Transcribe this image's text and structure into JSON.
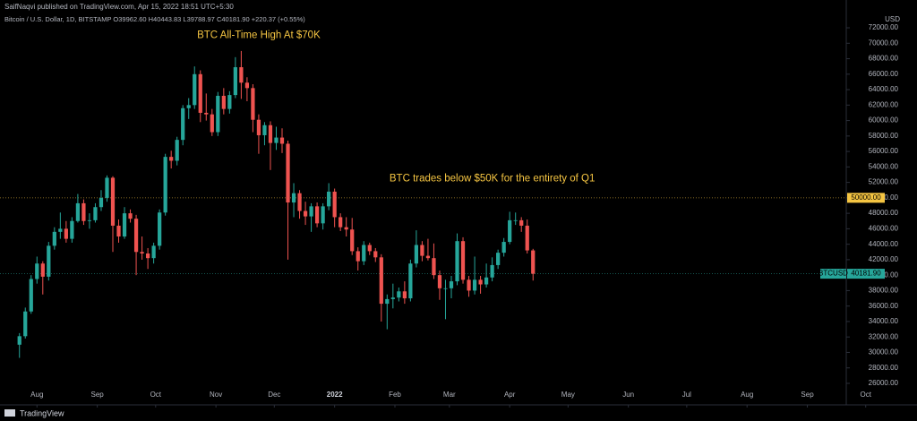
{
  "chart_data": {
    "type": "candlestick",
    "header": "SaifNaqvi published on TradingView.com, Apr 15, 2022 18:51 UTC+5:30",
    "symbol_line": "Bitcoin / U.S. Dollar, 1D, BITSTAMP  O39962.60  H40443.83  L39788.97  C40181.90  +220.37 (+0.55%)",
    "currency": "USD",
    "footer": "TradingView",
    "annotations": [
      {
        "text": "BTC All-Time High At $70K",
        "x": 114,
        "y": 71000
      },
      {
        "text": "BTC trades below $50K for the entirety of Q1",
        "x": 234,
        "y": 52500
      }
    ],
    "price_lines": [
      {
        "value": 50000,
        "label": "50000.00",
        "color": "#f5c542"
      },
      {
        "name": "BTCUSD",
        "value": 40181.9,
        "label": "40181.90",
        "color": "#26a69a"
      }
    ],
    "up_color": "#26a69a",
    "down_color": "#ef5350",
    "annotation_color": "#f5c542",
    "xlim": [
      -19,
      416
    ],
    "ylim": [
      25000,
      73000
    ],
    "xticks": [
      {
        "value": 0,
        "label": "Aug"
      },
      {
        "value": 31,
        "label": "Sep"
      },
      {
        "value": 61,
        "label": "Oct"
      },
      {
        "value": 92,
        "label": "Nov"
      },
      {
        "value": 122,
        "label": "Dec"
      },
      {
        "value": 153,
        "label": "2022"
      },
      {
        "value": 184,
        "label": "Feb"
      },
      {
        "value": 212,
        "label": "Mar"
      },
      {
        "value": 243,
        "label": "Apr"
      },
      {
        "value": 273,
        "label": "May"
      },
      {
        "value": 304,
        "label": "Jun"
      },
      {
        "value": 334,
        "label": "Jul"
      },
      {
        "value": 365,
        "label": "Aug"
      },
      {
        "value": 396,
        "label": "Sep"
      },
      {
        "value": 426,
        "label": "Oct"
      }
    ],
    "yticks": [
      {
        "value": 26000,
        "label": "26000.00"
      },
      {
        "value": 28000,
        "label": "28000.00"
      },
      {
        "value": 30000,
        "label": "30000.00"
      },
      {
        "value": 32000,
        "label": "32000.00"
      },
      {
        "value": 34000,
        "label": "34000.00"
      },
      {
        "value": 36000,
        "label": "36000.00"
      },
      {
        "value": 38000,
        "label": "38000.00"
      },
      {
        "value": 40000,
        "label": "40000.00"
      },
      {
        "value": 42000,
        "label": "42000.00"
      },
      {
        "value": 44000,
        "label": "44000.00"
      },
      {
        "value": 46000,
        "label": "46000.00"
      },
      {
        "value": 48000,
        "label": "48000.00"
      },
      {
        "value": 50000,
        "label": "50000.00"
      },
      {
        "value": 52000,
        "label": "52000.00"
      },
      {
        "value": 54000,
        "label": "54000.00"
      },
      {
        "value": 56000,
        "label": "56000.00"
      },
      {
        "value": 58000,
        "label": "58000.00"
      },
      {
        "value": 60000,
        "label": "60000.00"
      },
      {
        "value": 62000,
        "label": "62000.00"
      },
      {
        "value": 64000,
        "label": "64000.00"
      },
      {
        "value": 66000,
        "label": "66000.00"
      },
      {
        "value": 68000,
        "label": "68000.00"
      },
      {
        "value": 70000,
        "label": "70000.00"
      },
      {
        "value": 72000,
        "label": "72000.00"
      }
    ],
    "x": [
      -9,
      -6,
      -3,
      0,
      3,
      6,
      9,
      12,
      15,
      18,
      21,
      24,
      27,
      30,
      33,
      36,
      39,
      42,
      45,
      48,
      51,
      54,
      57,
      60,
      63,
      66,
      69,
      72,
      75,
      78,
      81,
      84,
      87,
      90,
      93,
      96,
      99,
      102,
      105,
      108,
      111,
      114,
      117,
      120,
      123,
      126,
      129,
      132,
      135,
      138,
      141,
      144,
      147,
      150,
      153,
      156,
      159,
      162,
      165,
      168,
      171,
      174,
      177,
      180,
      183,
      186,
      189,
      192,
      195,
      198,
      201,
      204,
      207,
      210,
      213,
      216,
      219,
      222,
      225,
      228,
      231,
      234,
      237,
      240,
      243,
      246,
      249,
      252,
      255
    ],
    "open": [
      31000,
      32100,
      35300,
      39500,
      41500,
      39800,
      43800,
      45600,
      46000,
      44700,
      47000,
      49300,
      47000,
      47100,
      48800,
      50000,
      52600,
      46400,
      45000,
      48000,
      47300,
      43000,
      42800,
      42200,
      43800,
      48100,
      55300,
      54800,
      57500,
      61600,
      62000,
      66000,
      61000,
      60800,
      58500,
      63200,
      61500,
      63300,
      66900,
      64900,
      64200,
      60100,
      58100,
      59400,
      57100,
      57800,
      57000,
      49400,
      50600,
      48300,
      47600,
      48900,
      46700,
      48900,
      50800,
      47500,
      46200,
      45900,
      43100,
      41800,
      43900,
      43100,
      42300,
      36300,
      36900,
      37100,
      37900,
      37000,
      41500,
      43900,
      42500,
      42200,
      40000,
      38300,
      38300,
      39200,
      44400,
      39400,
      38000,
      39400,
      38800,
      39700,
      41300,
      42900,
      44300,
      47100,
      47100,
      46400,
      43200
    ],
    "high": [
      32500,
      35800,
      40000,
      42400,
      41800,
      44300,
      46200,
      48100,
      47000,
      47500,
      50500,
      49800,
      48000,
      49300,
      51000,
      52900,
      52800,
      47200,
      48800,
      48500,
      47800,
      45000,
      43500,
      44200,
      48500,
      55700,
      56100,
      57900,
      62000,
      62900,
      67000,
      66500,
      63500,
      61500,
      63700,
      64200,
      63800,
      68200,
      69000,
      65600,
      64700,
      60800,
      59800,
      59900,
      59200,
      59000,
      57400,
      51900,
      51000,
      49500,
      49300,
      49400,
      49300,
      51900,
      51200,
      48000,
      47500,
      47400,
      43600,
      44400,
      44200,
      43500,
      42700,
      37500,
      38900,
      38400,
      39200,
      42000,
      45800,
      44400,
      44700,
      44100,
      40600,
      39400,
      39900,
      45400,
      44900,
      39900,
      42400,
      39900,
      41500,
      42300,
      43300,
      44800,
      48200,
      48100,
      47500,
      47200,
      43400
    ],
    "low": [
      29300,
      31800,
      35000,
      38900,
      37500,
      39300,
      43300,
      44700,
      44200,
      44200,
      46800,
      46500,
      46000,
      46800,
      48300,
      49500,
      43000,
      44200,
      44700,
      46800,
      40000,
      42000,
      40800,
      41500,
      43300,
      47700,
      53800,
      54200,
      56800,
      60200,
      61500,
      59800,
      60000,
      58000,
      58000,
      60800,
      60900,
      62900,
      62800,
      62500,
      58500,
      55700,
      56800,
      53600,
      56200,
      55800,
      42000,
      47500,
      47300,
      46500,
      45600,
      46200,
      45900,
      48400,
      46200,
      45700,
      45000,
      42600,
      40600,
      41300,
      42600,
      41700,
      34000,
      33000,
      35700,
      36600,
      36300,
      36600,
      41000,
      41800,
      41900,
      39500,
      36800,
      34300,
      37000,
      38700,
      38900,
      37200,
      37500,
      37600,
      38400,
      39200,
      40800,
      42400,
      44000,
      46500,
      45600,
      42800,
      39300
    ],
    "close": [
      32100,
      35300,
      39500,
      41500,
      39800,
      43800,
      45600,
      46000,
      44700,
      47000,
      49300,
      47000,
      47100,
      48800,
      50000,
      52600,
      46400,
      45000,
      48000,
      47300,
      43000,
      42800,
      42200,
      43800,
      48100,
      55300,
      54800,
      57500,
      61600,
      62000,
      66000,
      61000,
      60800,
      58500,
      63200,
      61500,
      63300,
      66900,
      64900,
      64200,
      60100,
      58100,
      59400,
      57100,
      57800,
      57000,
      49400,
      50600,
      48300,
      47600,
      48900,
      46700,
      48900,
      50800,
      47500,
      46200,
      45900,
      43100,
      41800,
      43900,
      43100,
      42300,
      36300,
      36900,
      37100,
      37900,
      37000,
      41500,
      43900,
      42500,
      42200,
      40000,
      38300,
      38300,
      39200,
      44400,
      39400,
      38000,
      39400,
      38800,
      39700,
      41300,
      42900,
      44300,
      47100,
      47100,
      46400,
      43200,
      40181.9
    ]
  }
}
